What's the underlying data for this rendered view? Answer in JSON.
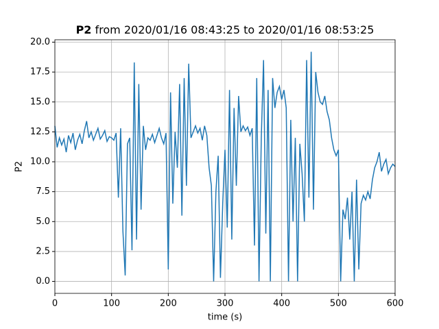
{
  "chart_data": {
    "type": "line",
    "title_parts": [
      "P2",
      "from 2020/01/16 08:43:25 to 2020/01/16 08:53:25"
    ],
    "xlabel": "time (s)",
    "ylabel": "P2",
    "xlim": [
      0,
      600
    ],
    "xticks": [
      0,
      100,
      200,
      300,
      400,
      500,
      600
    ],
    "ylim": [
      -1.0,
      20.2
    ],
    "yticks": [
      {
        "value": 0,
        "label": "0.0"
      },
      2.5,
      {
        "value": 5,
        "label": "5.0"
      },
      7.5,
      {
        "value": 10,
        "label": "10.0"
      },
      12.5,
      {
        "value": 15,
        "label": "15.0"
      },
      17.5,
      {
        "value": 20,
        "label": "20.0"
      }
    ],
    "grid": true,
    "x": [
      0,
      4,
      8,
      12,
      16,
      20,
      24,
      28,
      32,
      36,
      40,
      44,
      48,
      52,
      56,
      60,
      64,
      68,
      72,
      76,
      80,
      84,
      88,
      92,
      96,
      100,
      104,
      108,
      112,
      116,
      120,
      124,
      128,
      132,
      136,
      140,
      144,
      148,
      152,
      156,
      160,
      164,
      168,
      172,
      176,
      180,
      184,
      188,
      192,
      196,
      200,
      204,
      208,
      212,
      216,
      220,
      224,
      228,
      232,
      236,
      240,
      244,
      248,
      252,
      256,
      260,
      264,
      268,
      272,
      276,
      280,
      284,
      288,
      292,
      296,
      300,
      304,
      308,
      312,
      316,
      320,
      324,
      328,
      332,
      336,
      340,
      344,
      348,
      352,
      356,
      360,
      364,
      368,
      372,
      376,
      380,
      384,
      388,
      392,
      396,
      400,
      404,
      408,
      412,
      416,
      420,
      424,
      428,
      432,
      436,
      440,
      444,
      448,
      452,
      456,
      460,
      464,
      468,
      472,
      476,
      480,
      484,
      488,
      492,
      496,
      500,
      504,
      508,
      512,
      516,
      520,
      524,
      528,
      532,
      536,
      540,
      544,
      548,
      552,
      556,
      560,
      564,
      568,
      572,
      576,
      580,
      584,
      588,
      592,
      596,
      600
    ],
    "series": [
      {
        "name": "P2",
        "color": "#1f77b4",
        "values": [
          13.0,
          11.2,
          12.0,
          11.4,
          11.9,
          10.8,
          12.2,
          11.6,
          12.4,
          11.0,
          11.8,
          12.3,
          11.5,
          12.6,
          13.4,
          12.0,
          12.5,
          11.8,
          12.3,
          12.8,
          11.9,
          12.2,
          12.6,
          11.7,
          12.1,
          12.0,
          11.8,
          12.4,
          7.0,
          12.8,
          4.2,
          0.5,
          11.5,
          12.0,
          2.6,
          18.3,
          3.5,
          16.5,
          6.0,
          13.0,
          11.0,
          12.0,
          11.8,
          12.3,
          11.6,
          12.2,
          12.8,
          12.0,
          11.5,
          12.4,
          1.0,
          15.8,
          6.5,
          12.5,
          9.5,
          16.5,
          5.5,
          17.0,
          8.0,
          18.2,
          12.0,
          12.5,
          13.0,
          12.4,
          12.8,
          11.8,
          13.0,
          12.2,
          9.5,
          8.0,
          0.0,
          7.5,
          10.5,
          0.3,
          6.5,
          11.0,
          4.5,
          16.0,
          3.5,
          14.5,
          8.0,
          15.5,
          12.5,
          13.0,
          12.6,
          12.9,
          12.2,
          12.8,
          3.0,
          17.0,
          0.0,
          12.0,
          18.5,
          4.0,
          16.0,
          0.0,
          17.0,
          14.5,
          15.8,
          16.3,
          15.2,
          16.0,
          14.5,
          0.0,
          13.5,
          5.0,
          12.0,
          0.0,
          11.5,
          9.0,
          5.0,
          18.5,
          7.0,
          19.2,
          6.0,
          17.5,
          15.8,
          15.0,
          14.8,
          15.5,
          14.2,
          13.5,
          12.0,
          11.0,
          10.5,
          11.0,
          0.0,
          6.0,
          5.2,
          7.0,
          3.5,
          7.5,
          0.0,
          8.5,
          1.0,
          6.5,
          7.2,
          6.8,
          7.5,
          6.9,
          8.5,
          9.5,
          10.0,
          10.8,
          9.2,
          9.8,
          10.2,
          9.0,
          9.5,
          9.8,
          9.6
        ]
      }
    ]
  }
}
